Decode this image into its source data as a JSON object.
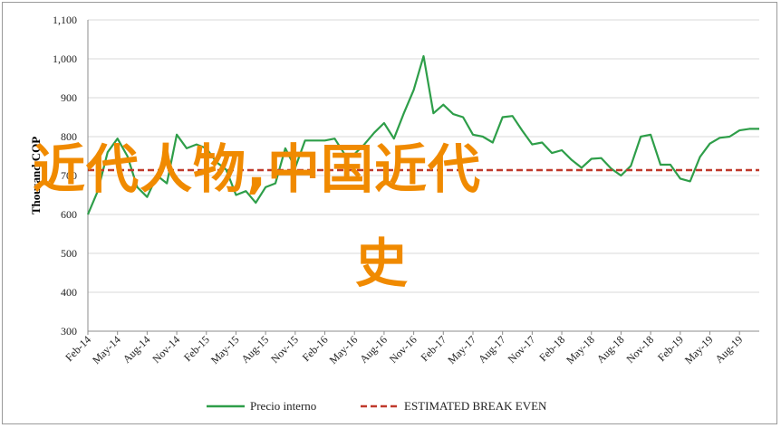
{
  "chart_data": {
    "type": "line",
    "ylabel": "Thousand COP",
    "ylim": [
      300,
      1100
    ],
    "yticks": [
      "300",
      "400",
      "500",
      "600",
      "700",
      "800",
      "900",
      "1,000",
      "1,100"
    ],
    "grid": true,
    "legend_position": "bottom",
    "x_tick_labels": [
      "Feb-14",
      "May-14",
      "Aug-14",
      "Nov-14",
      "Feb-15",
      "May-15",
      "Aug-15",
      "Nov-15",
      "Feb-16",
      "May-16",
      "Aug-16",
      "Nov-16",
      "Feb-17",
      "May-17",
      "Aug-17",
      "Nov-17",
      "Feb-18",
      "May-18",
      "Aug-18",
      "Nov-18",
      "Feb-19",
      "May-19",
      "Aug-19"
    ],
    "x": [
      "Feb-14",
      "Mar-14",
      "Apr-14",
      "May-14",
      "Jun-14",
      "Jul-14",
      "Aug-14",
      "Sep-14",
      "Oct-14",
      "Nov-14",
      "Dec-14",
      "Jan-15",
      "Feb-15",
      "Mar-15",
      "Apr-15",
      "May-15",
      "Jun-15",
      "Jul-15",
      "Aug-15",
      "Sep-15",
      "Oct-15",
      "Nov-15",
      "Dec-15",
      "Jan-16",
      "Feb-16",
      "Mar-16",
      "Apr-16",
      "May-16",
      "Jun-16",
      "Jul-16",
      "Aug-16",
      "Sep-16",
      "Oct-16",
      "Nov-16",
      "Dec-16",
      "Jan-17",
      "Feb-17",
      "Mar-17",
      "Apr-17",
      "May-17",
      "Jun-17",
      "Jul-17",
      "Aug-17",
      "Sep-17",
      "Oct-17",
      "Nov-17",
      "Dec-17",
      "Jan-18",
      "Feb-18",
      "Mar-18",
      "Apr-18",
      "May-18",
      "Jun-18",
      "Jul-18",
      "Aug-18",
      "Sep-18",
      "Oct-18",
      "Nov-18",
      "Dec-18",
      "Jan-19",
      "Feb-19",
      "Mar-19",
      "Apr-19",
      "May-19",
      "Jun-19",
      "Jul-19",
      "Aug-19",
      "Sep-19",
      "Oct-19"
    ],
    "series": [
      {
        "name": "Precio interno",
        "color": "#2e9e49",
        "style": "solid",
        "values": [
          600,
          660,
          760,
          795,
          750,
          670,
          645,
          700,
          680,
          805,
          770,
          780,
          770,
          735,
          715,
          650,
          660,
          630,
          670,
          680,
          770,
          720,
          790,
          790,
          790,
          795,
          755,
          755,
          780,
          810,
          835,
          795,
          860,
          920,
          1007,
          860,
          882,
          858,
          850,
          805,
          800,
          785,
          850,
          853,
          815,
          780,
          785,
          758,
          765,
          740,
          720,
          743,
          745,
          718,
          700,
          725,
          800,
          805,
          728,
          728,
          692,
          685,
          748,
          782,
          797,
          800,
          816,
          820,
          820
        ]
      },
      {
        "name": "ESTIMATED BREAK EVEN",
        "color": "#c0392b",
        "style": "dashed",
        "values": [
          714,
          714,
          714,
          714,
          714,
          714,
          714,
          714,
          714,
          714,
          714,
          714,
          714,
          714,
          714,
          714,
          714,
          714,
          714,
          714,
          714,
          714,
          714,
          714,
          714,
          714,
          714,
          714,
          714,
          714,
          714,
          714,
          714,
          714,
          714,
          714,
          714,
          714,
          714,
          714,
          714,
          714,
          714,
          714,
          714,
          714,
          714,
          714,
          714,
          714,
          714,
          714,
          714,
          714,
          714,
          714,
          714,
          714,
          714,
          714,
          714,
          714,
          714,
          714,
          714,
          714,
          714,
          714,
          714
        ]
      }
    ]
  },
  "overlay": {
    "line1": "近代人物,中国近代",
    "line2": "史"
  }
}
